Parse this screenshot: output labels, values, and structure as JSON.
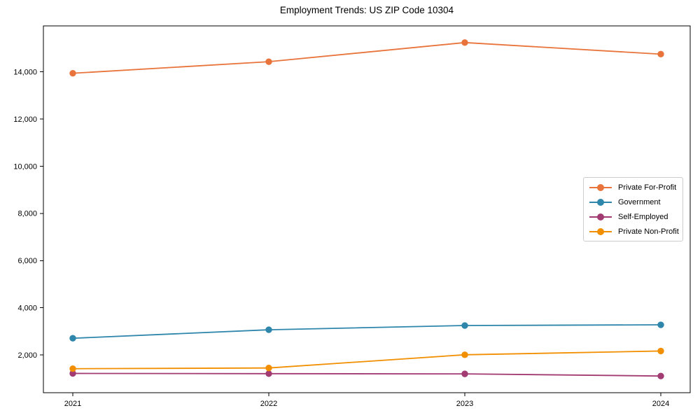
{
  "chart_data": {
    "type": "line",
    "title": "Employment Trends: US ZIP Code 10304",
    "categories": [
      "2021",
      "2022",
      "2023",
      "2024"
    ],
    "series": [
      {
        "name": "Private For-Profit",
        "color": "#E8743B",
        "values": [
          13940,
          14430,
          15240,
          14750
        ]
      },
      {
        "name": "Government",
        "color": "#2E86AB",
        "values": [
          2710,
          3070,
          3250,
          3280
        ]
      },
      {
        "name": "Self-Employed",
        "color": "#A23B72",
        "values": [
          1220,
          1210,
          1200,
          1110
        ]
      },
      {
        "name": "Private Non-Profit",
        "color": "#F18F01",
        "values": [
          1420,
          1450,
          2010,
          2170
        ]
      }
    ],
    "xlabel": "",
    "ylabel": "",
    "ylim": [
      403,
      15947
    ],
    "yticks": [
      2000,
      4000,
      6000,
      8000,
      10000,
      12000,
      14000
    ],
    "ytick_labels": [
      "2,000",
      "4,000",
      "6,000",
      "8,000",
      "10,000",
      "12,000",
      "14,000"
    ],
    "grid": false,
    "legend_position": "center-right",
    "marker": "circle"
  }
}
